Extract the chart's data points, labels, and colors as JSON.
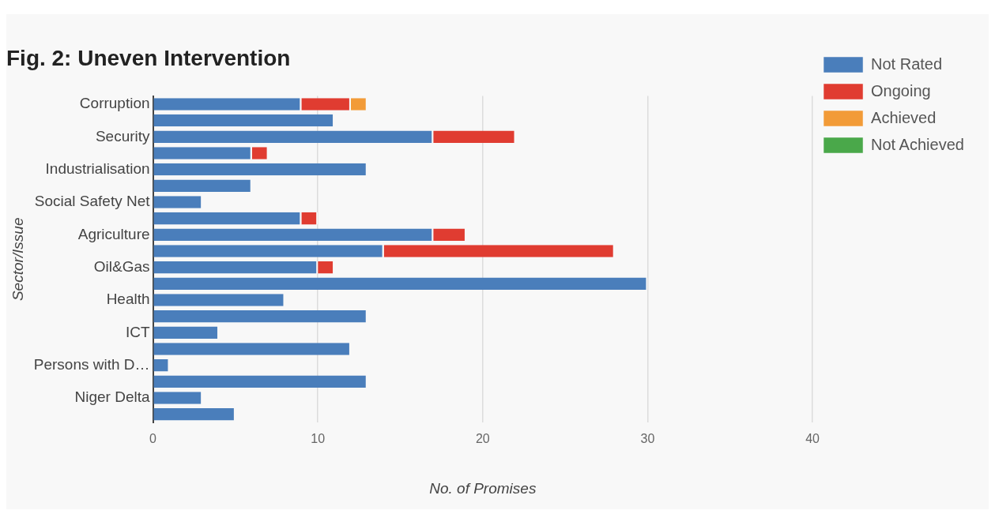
{
  "chart_data": {
    "type": "bar",
    "orientation": "horizontal",
    "stacked": true,
    "title": "Fig. 2: Uneven Intervention",
    "xlabel": "No. of Promises",
    "ylabel": "Sector/Issue",
    "categories": [
      "Corruption",
      null,
      "Security",
      null,
      "Industrialisation",
      null,
      "Social Safety Net",
      null,
      "Agriculture",
      null,
      "Oil&Gas",
      null,
      "Health",
      null,
      "ICT",
      null,
      "Persons with D…",
      null,
      "Niger Delta",
      null
    ],
    "series": [
      {
        "name": "Not Rated",
        "color": "#4a7ebb",
        "values": [
          9,
          11,
          17,
          6,
          13,
          6,
          3,
          9,
          17,
          14,
          10,
          30,
          8,
          13,
          4,
          12,
          1,
          13,
          3,
          5
        ]
      },
      {
        "name": "Ongoing",
        "color": "#e03c31",
        "values": [
          3,
          0,
          5,
          1,
          0,
          0,
          0,
          1,
          2,
          14,
          1,
          0,
          0,
          0,
          0,
          0,
          0,
          0,
          0,
          0
        ]
      },
      {
        "name": "Achieved",
        "color": "#f29b38",
        "values": [
          1,
          0,
          0,
          0,
          0,
          0,
          0,
          0,
          0,
          0,
          0,
          0,
          0,
          0,
          0,
          0,
          0,
          0,
          0,
          0
        ]
      },
      {
        "name": "Not Achieved",
        "color": "#4aa84a",
        "values": [
          0,
          0,
          0,
          0,
          0,
          0,
          0,
          0,
          0,
          0,
          0,
          0,
          0,
          0,
          0,
          0,
          0,
          0,
          0,
          0
        ]
      }
    ],
    "xlim": [
      0,
      40
    ],
    "xticks": [
      0,
      10,
      20,
      30,
      40
    ],
    "grid": "x",
    "legend": "right"
  }
}
